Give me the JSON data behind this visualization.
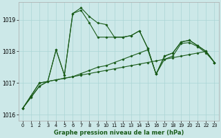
{
  "xlabel": "Graphe pression niveau de la mer (hPa)",
  "ylim": [
    1015.8,
    1019.55
  ],
  "xlim": [
    -0.5,
    23.5
  ],
  "yticks": [
    1016,
    1017,
    1018,
    1019
  ],
  "xticks": [
    0,
    1,
    2,
    3,
    4,
    5,
    6,
    7,
    8,
    9,
    10,
    11,
    12,
    13,
    14,
    15,
    16,
    17,
    18,
    19,
    20,
    21,
    22,
    23
  ],
  "bg_color": "#cce8e8",
  "grid_color": "#aad4d4",
  "series": [
    {
      "data": [
        1016.2,
        1016.55,
        1016.9,
        1017.05,
        1017.1,
        1017.15,
        1017.2,
        1017.25,
        1017.3,
        1017.35,
        1017.4,
        1017.45,
        1017.5,
        1017.55,
        1017.6,
        1017.65,
        1017.7,
        1017.75,
        1017.8,
        1017.85,
        1017.9,
        1017.95,
        1018.0,
        1017.65
      ],
      "color": "#1a5c1a",
      "lw": 0.8,
      "marker": "D",
      "ms": 1.5,
      "ls": "-",
      "zorder": 2
    },
    {
      "data": [
        1016.2,
        1016.55,
        1016.9,
        1017.05,
        1017.1,
        1017.15,
        1017.2,
        1017.3,
        1017.4,
        1017.5,
        1017.55,
        1017.65,
        1017.75,
        1017.85,
        1017.95,
        1018.05,
        1017.28,
        1017.75,
        1017.85,
        1018.25,
        1018.28,
        1018.15,
        1017.95,
        1017.65
      ],
      "color": "#1a5c1a",
      "lw": 0.8,
      "marker": "D",
      "ms": 1.5,
      "ls": "-",
      "zorder": 2
    },
    {
      "data": [
        1016.2,
        1016.6,
        1017.0,
        1017.05,
        1018.05,
        1017.25,
        1019.2,
        1019.3,
        1018.9,
        1018.45,
        1018.45,
        1018.45,
        1018.45,
        1018.5,
        1018.65,
        1018.1,
        1017.28,
        1017.85,
        1017.95,
        1018.3,
        1018.35,
        1018.18,
        1018.0,
        1017.65
      ],
      "color": "#1a5c1a",
      "lw": 0.8,
      "marker": "D",
      "ms": 1.5,
      "ls": "-",
      "zorder": 3
    },
    {
      "data": [
        1016.2,
        1016.6,
        1017.0,
        1017.05,
        1018.05,
        1017.25,
        1019.2,
        1019.38,
        1019.1,
        1018.9,
        1018.85,
        1018.45,
        1018.45,
        1018.5,
        1018.65,
        1018.1,
        1017.28,
        1017.85,
        1017.95,
        1018.3,
        1018.35,
        1018.18,
        1018.0,
        1017.65
      ],
      "color": "#1a5c1a",
      "lw": 0.8,
      "marker": "D",
      "ms": 1.5,
      "ls": "-",
      "zorder": 3
    }
  ]
}
